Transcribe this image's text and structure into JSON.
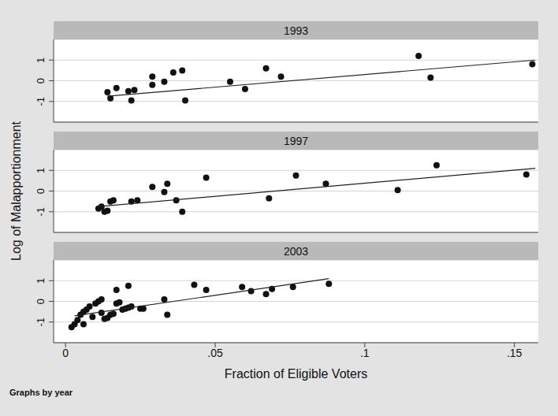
{
  "chart_data": [
    {
      "type": "scatter",
      "title": "1993",
      "xlim": [
        -0.004,
        0.158
      ],
      "xticks": [
        0,
        {
          "value": 0.05,
          "label": ".05"
        },
        {
          "value": 0.1,
          "label": ".1"
        },
        {
          "value": 0.15,
          "label": ".15"
        }
      ],
      "ylim": [
        -2,
        2
      ],
      "yticks": [
        -1,
        0,
        1
      ],
      "grid": true,
      "tick_labels": "y",
      "series": [
        {
          "type": "scatter",
          "marker": "circle",
          "color": "#111111",
          "x": [
            0.014,
            0.015,
            0.017,
            0.021,
            0.022,
            0.023,
            0.029,
            0.029,
            0.033,
            0.036,
            0.039,
            0.04,
            0.055,
            0.06,
            0.067,
            0.072,
            0.118,
            0.122,
            0.156
          ],
          "values": [
            -0.55,
            -0.85,
            -0.35,
            -0.5,
            -0.95,
            -0.45,
            0.2,
            -0.2,
            -0.05,
            0.4,
            0.5,
            -0.95,
            -0.05,
            -0.4,
            0.6,
            0.2,
            1.2,
            0.15,
            0.8
          ]
        },
        {
          "type": "line",
          "line_style": "solid",
          "color": "#222222",
          "x": [
            0.014,
            0.157
          ],
          "values": [
            -0.75,
            1.0
          ]
        }
      ]
    },
    {
      "type": "scatter",
      "title": "1997",
      "xlim": [
        -0.004,
        0.158
      ],
      "xticks": [
        0,
        {
          "value": 0.05,
          "label": ".05"
        },
        {
          "value": 0.1,
          "label": ".1"
        },
        {
          "value": 0.15,
          "label": ".15"
        }
      ],
      "ylim": [
        -2,
        2
      ],
      "yticks": [
        -1,
        0,
        1
      ],
      "grid": true,
      "tick_labels": "y",
      "series": [
        {
          "type": "scatter",
          "marker": "circle",
          "color": "#111111",
          "x": [
            0.011,
            0.012,
            0.013,
            0.014,
            0.015,
            0.016,
            0.022,
            0.024,
            0.029,
            0.033,
            0.034,
            0.037,
            0.039,
            0.047,
            0.068,
            0.077,
            0.087,
            0.111,
            0.124,
            0.154
          ],
          "values": [
            -0.85,
            -0.75,
            -1.0,
            -0.95,
            -0.5,
            -0.45,
            -0.5,
            -0.45,
            0.2,
            -0.05,
            0.35,
            -0.45,
            -1.0,
            0.65,
            -0.35,
            0.75,
            0.35,
            0.05,
            1.25,
            0.8
          ]
        },
        {
          "type": "line",
          "line_style": "solid",
          "color": "#222222",
          "x": [
            0.011,
            0.157
          ],
          "values": [
            -0.75,
            1.1
          ]
        }
      ]
    },
    {
      "type": "scatter",
      "title": "2003",
      "xlim": [
        -0.004,
        0.158
      ],
      "xticks": [
        0,
        {
          "value": 0.05,
          "label": ".05"
        },
        {
          "value": 0.1,
          "label": ".1"
        },
        {
          "value": 0.15,
          "label": ".15"
        }
      ],
      "ylim": [
        -2,
        2
      ],
      "yticks": [
        -1,
        0,
        1
      ],
      "grid": true,
      "series": [
        {
          "type": "scatter",
          "marker": "circle",
          "color": "#111111",
          "x": [
            0.002,
            0.003,
            0.004,
            0.005,
            0.006,
            0.006,
            0.007,
            0.008,
            0.009,
            0.01,
            0.011,
            0.012,
            0.012,
            0.013,
            0.014,
            0.015,
            0.016,
            0.017,
            0.017,
            0.018,
            0.019,
            0.02,
            0.021,
            0.021,
            0.022,
            0.025,
            0.026,
            0.033,
            0.034,
            0.043,
            0.047,
            0.059,
            0.062,
            0.067,
            0.069,
            0.076,
            0.088
          ],
          "values": [
            -1.25,
            -1.1,
            -0.9,
            -0.65,
            -0.5,
            -1.1,
            -0.4,
            -0.25,
            -0.75,
            -0.1,
            0.0,
            -0.55,
            0.1,
            -0.85,
            -0.8,
            -0.65,
            -0.6,
            0.55,
            -0.1,
            -0.05,
            -0.4,
            -0.35,
            0.75,
            -0.3,
            -0.25,
            -0.35,
            -0.35,
            0.1,
            -0.65,
            0.8,
            0.55,
            0.7,
            0.5,
            0.35,
            0.6,
            0.7,
            0.85
          ]
        },
        {
          "type": "line",
          "line_style": "solid",
          "color": "#222222",
          "x": [
            0.003,
            0.088
          ],
          "values": [
            -0.7,
            1.1
          ]
        }
      ]
    }
  ],
  "xlabel": "Fraction of Eligible Voters",
  "ylabel": "Log of Malapportionment",
  "note": "Graphs by year"
}
